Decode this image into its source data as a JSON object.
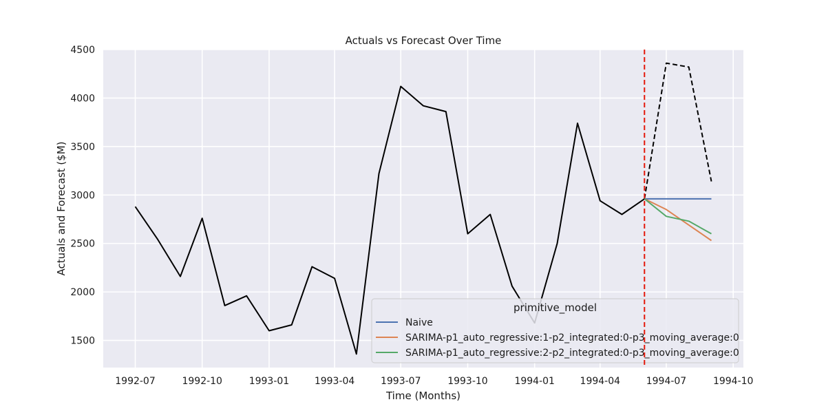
{
  "chart_data": {
    "type": "line",
    "title": "Actuals vs Forecast Over Time",
    "xlabel": "Time (Months)",
    "ylabel": "Actuals and Forecast ($M)",
    "ylim": [
      1220,
      4500
    ],
    "xlim": [
      "1992-05-18",
      "1994-10-15"
    ],
    "y_ticks": [
      1500,
      2000,
      2500,
      3000,
      3500,
      4000,
      4500
    ],
    "x_ticks": [
      "1992-07",
      "1992-10",
      "1993-01",
      "1993-04",
      "1993-07",
      "1993-10",
      "1994-01",
      "1994-04",
      "1994-07",
      "1994-10"
    ],
    "grid": true,
    "background_color": "#eaeaf2",
    "legend": {
      "title": "primitive_model",
      "position": "lower-right"
    },
    "forecast_start": "1994-06",
    "forecast_marker_color": "#e3170a",
    "actuals": {
      "color": "#000000",
      "x": [
        "1992-07",
        "1992-08",
        "1992-09",
        "1992-10",
        "1992-11",
        "1992-12",
        "1993-01",
        "1993-02",
        "1993-03",
        "1993-04",
        "1993-05",
        "1993-06",
        "1993-07",
        "1993-08",
        "1993-09",
        "1993-10",
        "1993-11",
        "1993-12",
        "1994-01",
        "1994-02",
        "1994-03",
        "1994-04",
        "1994-05",
        "1994-06"
      ],
      "values": [
        2880,
        2540,
        2160,
        2760,
        1860,
        1960,
        1600,
        1660,
        2260,
        2140,
        1360,
        3220,
        4120,
        3920,
        3860,
        2600,
        2800,
        2060,
        1680,
        2500,
        3740,
        2940,
        2800,
        2960
      ]
    },
    "actuals_holdout": {
      "color": "#000000",
      "style": "dashed",
      "x": [
        "1994-06",
        "1994-07",
        "1994-08",
        "1994-09"
      ],
      "values": [
        2960,
        4360,
        4320,
        3140
      ]
    },
    "series": [
      {
        "name": "Naive",
        "color": "#4c72b0",
        "x": [
          "1994-06",
          "1994-07",
          "1994-08",
          "1994-09"
        ],
        "values": [
          2960,
          2960,
          2960,
          2960
        ]
      },
      {
        "name": "SARIMA-p1_auto_regressive:1-p2_integrated:0-p3_moving_average:0",
        "color": "#dd8452",
        "x": [
          "1994-06",
          "1994-07",
          "1994-08",
          "1994-09"
        ],
        "values": [
          2960,
          2850,
          2690,
          2530
        ]
      },
      {
        "name": "SARIMA-p1_auto_regressive:2-p2_integrated:0-p3_moving_average:0",
        "color": "#55a868",
        "x": [
          "1994-06",
          "1994-07",
          "1994-08",
          "1994-09"
        ],
        "values": [
          2960,
          2780,
          2730,
          2600
        ]
      }
    ]
  }
}
